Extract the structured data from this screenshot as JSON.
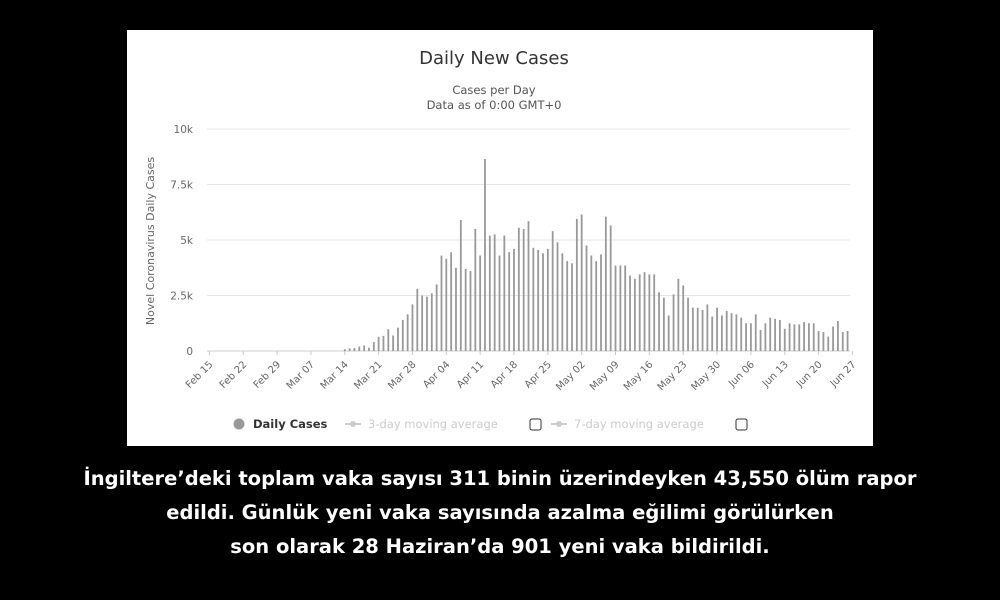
{
  "chart_data": {
    "type": "bar",
    "title": "Daily New Cases",
    "subtitle": [
      "Cases per Day",
      "Data as of 0:00 GMT+0"
    ],
    "ylabel": "Novel Coronavirus Daily Cases",
    "xlabel": "",
    "ylim": [
      0,
      10000
    ],
    "yticks": [
      0,
      2500,
      5000,
      7500,
      10000
    ],
    "ytick_labels": [
      "0",
      "2.5k",
      "5k",
      "7.5k",
      "10k"
    ],
    "x_tick_labels": [
      "Feb 15",
      "Feb 22",
      "Feb 29",
      "Mar 07",
      "Mar 14",
      "Mar 21",
      "Mar 28",
      "Apr 04",
      "Apr 11",
      "Apr 18",
      "Apr 25",
      "May 02",
      "May 09",
      "May 16",
      "May 23",
      "May 30",
      "Jun 06",
      "Jun 13",
      "Jun 20",
      "Jun 27"
    ],
    "start_category": "Feb 15",
    "grid": true,
    "legend_position": "bottom",
    "bar_color": "#999999",
    "series": [
      {
        "name": "Daily Cases",
        "values": [
          0,
          0,
          0,
          0,
          0,
          0,
          0,
          0,
          0,
          0,
          0,
          0,
          0,
          0,
          0,
          0,
          0,
          0,
          0,
          0,
          0,
          0,
          0,
          0,
          0,
          0,
          0,
          0,
          80,
          120,
          130,
          200,
          250,
          150,
          400,
          640,
          680,
          980,
          700,
          1050,
          1400,
          1650,
          2100,
          2800,
          2500,
          2450,
          2600,
          3000,
          4300,
          4150,
          4450,
          3750,
          5900,
          3700,
          3600,
          5500,
          4300,
          8650,
          5200,
          5250,
          4300,
          5200,
          4450,
          4600,
          5550,
          5500,
          5850,
          4650,
          4550,
          4400,
          4600,
          5400,
          4900,
          4400,
          4050,
          3950,
          5950,
          6150,
          4750,
          4300,
          4050,
          4350,
          6050,
          5650,
          3850,
          3850,
          3850,
          3400,
          3250,
          3450,
          3550,
          3450,
          3450,
          2650,
          2400,
          1600,
          2550,
          3250,
          2950,
          2400,
          1950,
          1950,
          1850,
          2100,
          1550,
          1950,
          1600,
          1800,
          1700,
          1650,
          1500,
          1250,
          1250,
          1650,
          950,
          1250,
          1500,
          1450,
          1400,
          1000,
          1250,
          1200,
          1200,
          1300,
          1250,
          1250,
          900,
          850,
          650,
          1100,
          1350,
          850,
          901
        ]
      }
    ],
    "legend": {
      "daily_cases": "Daily Cases",
      "avg3": "3-day moving average",
      "avg7": "7-day moving average"
    }
  },
  "caption": {
    "line1": "İngiltere’deki toplam vaka sayısı 311 binin üzerindeyken 43,550 ölüm rapor",
    "line2": "edildi. Günlük yeni vaka sayısında azalma eğilimi görülürken",
    "line3": "son olarak 28 Haziran’da 901 yeni vaka bildirildi."
  },
  "colors": {
    "background": "#000000",
    "panel": "#ffffff",
    "bars": "#999999",
    "grid": "#e6e6e6",
    "legend_inactive": "#cccccc",
    "caption_text": "#ffffff"
  }
}
